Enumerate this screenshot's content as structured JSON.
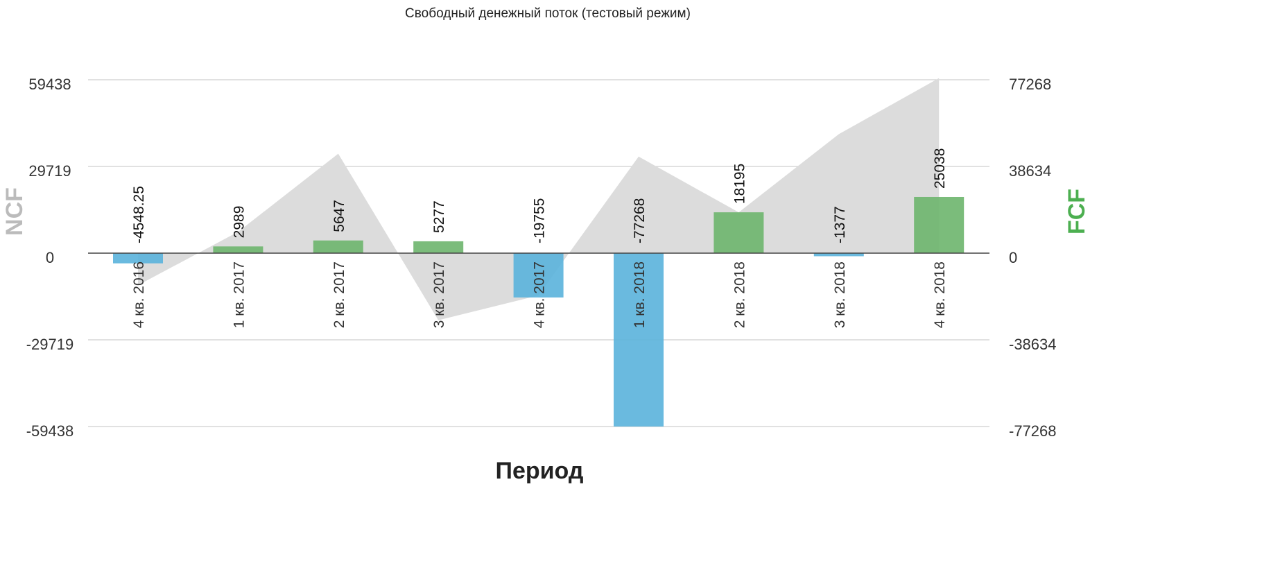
{
  "chart_data": {
    "type": "bar",
    "title": "Свободный денежный поток (тестовый режим)",
    "xlabel": "Период",
    "categories": [
      "4 кв. 2016",
      "1 кв. 2017",
      "2 кв. 2017",
      "3 кв. 2017",
      "4 кв. 2017",
      "1 кв. 2018",
      "2 кв. 2018",
      "3 кв. 2018",
      "4 кв. 2018"
    ],
    "series": [
      {
        "name": "FCF",
        "kind": "bar",
        "axis": "right",
        "values": [
          -4548.25,
          2989,
          5647,
          5277,
          -19755,
          -77268,
          18195,
          -1377,
          25038
        ],
        "value_labels": [
          "-4548.25",
          "2989",
          "5647",
          "5277",
          "-19755",
          "-77268",
          "18195",
          "-1377",
          "25038"
        ]
      },
      {
        "name": "NCF",
        "kind": "area",
        "axis": "left",
        "values": [
          -11000,
          7300,
          34100,
          -23000,
          -14500,
          33100,
          14000,
          40800,
          60000
        ]
      }
    ],
    "left_axis": {
      "title": "NCF",
      "ticks": [
        59438,
        29719,
        0,
        -29719,
        -59438
      ],
      "tick_labels": [
        "59438",
        "29719",
        "0",
        "-29719",
        "-59438"
      ],
      "range": [
        -59438,
        59438
      ]
    },
    "right_axis": {
      "title": "FCF",
      "ticks": [
        77268,
        38634,
        0,
        -38634,
        -77268
      ],
      "tick_labels": [
        "77268",
        "38634",
        "0",
        "-38634",
        "-77268"
      ],
      "range": [
        -77268,
        77268
      ]
    },
    "grid": true,
    "legend": "none",
    "colors": {
      "positive_bar": "#6db56d",
      "negative_bar": "#5ab2dc",
      "area": "#dcdcdc",
      "left_axis_title": "#bbbbbb",
      "right_axis_title": "#4caf50",
      "grid": "#cfcfcf",
      "zero_line": "#444444"
    }
  }
}
